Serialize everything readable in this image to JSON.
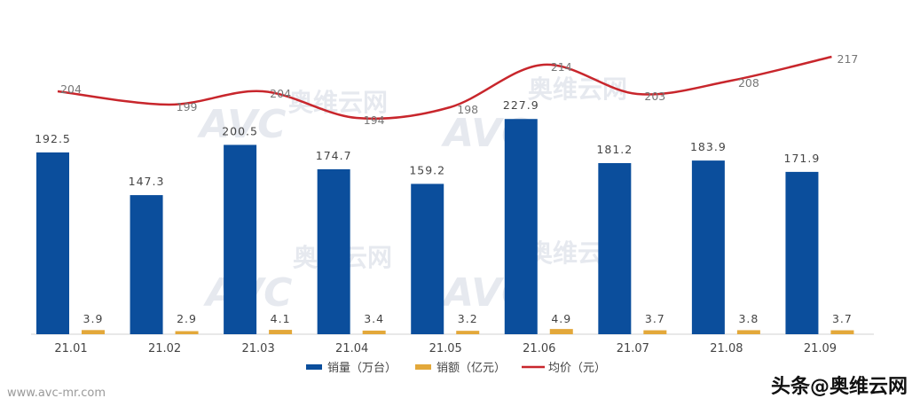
{
  "chart_data": {
    "type": "bar",
    "categories": [
      "21.01",
      "21.02",
      "21.03",
      "21.04",
      "21.05",
      "21.06",
      "21.07",
      "21.08",
      "21.09"
    ],
    "series": [
      {
        "name": "销量（万台）",
        "type": "bar",
        "color": "#0b4e9c",
        "values": [
          192.5,
          147.3,
          200.5,
          174.7,
          159.2,
          227.9,
          181.2,
          183.9,
          171.9
        ],
        "labels": [
          "192.5",
          "147.3",
          "200.5",
          "174.7",
          "159.2",
          "227.9",
          "181.2",
          "183.9",
          "171.9"
        ]
      },
      {
        "name": "销额（亿元）",
        "type": "bar",
        "color": "#e3a83a",
        "values": [
          3.9,
          2.9,
          4.1,
          3.4,
          3.2,
          4.9,
          3.7,
          3.8,
          3.7
        ],
        "labels": [
          "3.9",
          "2.9",
          "4.1",
          "3.4",
          "3.2",
          "4.9",
          "3.7",
          "3.8",
          "3.7"
        ]
      },
      {
        "name": "均价（元）",
        "type": "line",
        "color": "#c8262c",
        "values": [
          204,
          199,
          204,
          194,
          198,
          214,
          203,
          208,
          217
        ],
        "labels": [
          "204",
          "199",
          "204",
          "194",
          "198",
          "214",
          "203",
          "208",
          "217"
        ]
      }
    ],
    "legend_position": "bottom"
  },
  "watermark": {
    "brand": "AVC",
    "name_cn": "奥维云网"
  },
  "footer": {
    "source_url": "www.avc-mr.com",
    "attribution": "头条@奥维云网"
  }
}
